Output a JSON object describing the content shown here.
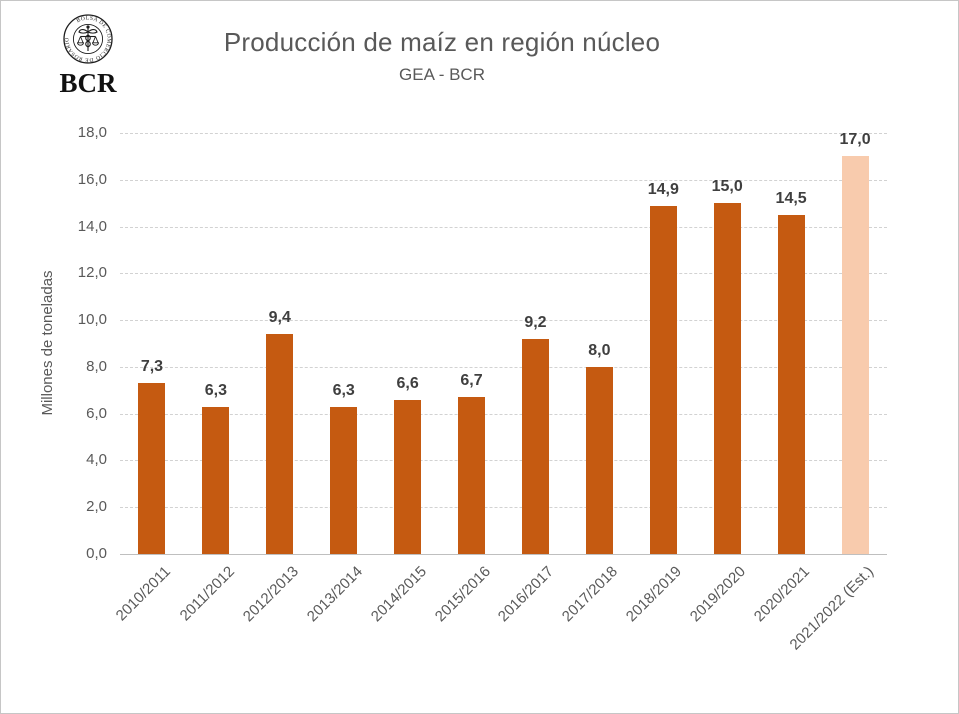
{
  "header": {
    "logo": {
      "acronym": "BCR",
      "seal_text": "BOLSA DE COMERCIO DE ROSARIO"
    },
    "title": "Producción de maíz en región núcleo",
    "subtitle": "GEA - BCR"
  },
  "chart_data": {
    "type": "bar",
    "title": "Producción de maíz en región núcleo",
    "subtitle": "GEA - BCR",
    "xlabel": "",
    "ylabel": "Millones de toneladas",
    "ylim": [
      0,
      18
    ],
    "ytick_step": 2,
    "ytick_labels": [
      "0,0",
      "2,0",
      "4,0",
      "6,0",
      "8,0",
      "10,0",
      "12,0",
      "14,0",
      "16,0",
      "18,0"
    ],
    "grid": true,
    "legend_position": "none",
    "categories": [
      "2010/2011",
      "2011/2012",
      "2012/2013",
      "2013/2014",
      "2014/2015",
      "2015/2016",
      "2016/2017",
      "2017/2018",
      "2018/2019",
      "2019/2020",
      "2020/2021",
      "2021/2022 (Est.)"
    ],
    "values": [
      7.3,
      6.3,
      9.4,
      6.3,
      6.6,
      6.7,
      9.2,
      8.0,
      14.9,
      15.0,
      14.5,
      17.0
    ],
    "value_labels": [
      "7,3",
      "6,3",
      "9,4",
      "6,3",
      "6,6",
      "6,7",
      "9,2",
      "8,0",
      "14,9",
      "15,0",
      "14,5",
      "17,0"
    ],
    "estimate_index": 11,
    "colors": {
      "bar": "#C55A11",
      "estimate_bar": "#F8CBAD",
      "grid": "#D2D2D2",
      "axis_line": "#BFBFBF",
      "axis_text": "#595959",
      "value_label": "#3F3F3F",
      "title_text": "#595959"
    }
  }
}
